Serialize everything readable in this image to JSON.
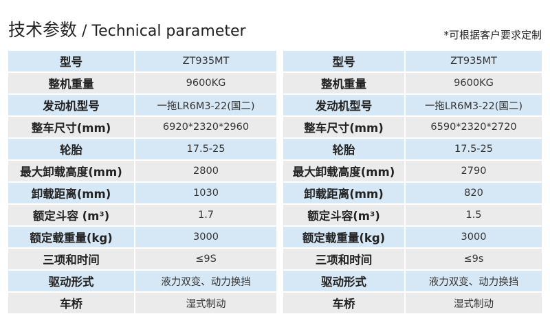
{
  "header": {
    "title_cn": "技术参数",
    "separator": " / ",
    "title_en": "Technical parameter",
    "note": "*可根据客户要求定制"
  },
  "tables": [
    {
      "rows": [
        {
          "label": "型号",
          "value": "ZT935MT"
        },
        {
          "label": "整机重量",
          "value": "9600KG"
        },
        {
          "label": "发动机型号",
          "value": "一拖LR6M3-22(国二)"
        },
        {
          "label": "整车尺寸(mm)",
          "value": "6920*2320*2960"
        },
        {
          "label": "轮胎",
          "value": "17.5-25"
        },
        {
          "label": "最大卸载高度(mm)",
          "value": "2800"
        },
        {
          "label": "卸载距离(mm)",
          "value": "1030"
        },
        {
          "label": "额定斗容 (m³)",
          "value": "1.7"
        },
        {
          "label": "额定载重量(kg)",
          "value": "3000"
        },
        {
          "label": "三项和时间",
          "value": "≤9S"
        },
        {
          "label": "驱动形式",
          "value": "液力双变、动力换挡"
        },
        {
          "label": "车桥",
          "value": "湿式制动"
        }
      ]
    },
    {
      "rows": [
        {
          "label": "型号",
          "value": "ZT935MT"
        },
        {
          "label": "整机重量",
          "value": "9600KG"
        },
        {
          "label": "发动机型号",
          "value": "一拖LR6M3-22(国二)"
        },
        {
          "label": "整车尺寸(mm)",
          "value": "6590*2320*2720"
        },
        {
          "label": "轮胎",
          "value": "17.5-25"
        },
        {
          "label": "最大卸载高度(mm)",
          "value": "2790"
        },
        {
          "label": "卸载距离(mm)",
          "value": "820"
        },
        {
          "label": "额定斗容(m³)",
          "value": "1.5"
        },
        {
          "label": "额定载重量(kg)",
          "value": "3000"
        },
        {
          "label": "三项和时间",
          "value": "≤9s"
        },
        {
          "label": "驱动形式",
          "value": "液力双变、动力换挡"
        },
        {
          "label": "车桥",
          "value": "湿式制动"
        }
      ]
    }
  ],
  "colors": {
    "row_blue": "#d6e7f5",
    "row_gray": "#ebebeb"
  }
}
